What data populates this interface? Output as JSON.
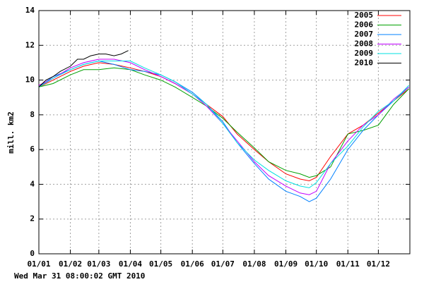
{
  "chart_data": {
    "type": "line",
    "y_label": "mill. km2",
    "footnote": "Wed Mar 31 08:00:02 GMT 2010",
    "xlim": [
      1,
      366
    ],
    "xticks": [
      {
        "value": 1,
        "label": "01/01"
      },
      {
        "value": 32,
        "label": "01/02"
      },
      {
        "value": 60,
        "label": "01/03"
      },
      {
        "value": 91,
        "label": "01/04"
      },
      {
        "value": 121,
        "label": "01/05"
      },
      {
        "value": 152,
        "label": "01/06"
      },
      {
        "value": 182,
        "label": "01/07"
      },
      {
        "value": 213,
        "label": "01/08"
      },
      {
        "value": 244,
        "label": "01/09"
      },
      {
        "value": 274,
        "label": "01/10"
      },
      {
        "value": 305,
        "label": "01/11"
      },
      {
        "value": 335,
        "label": "01/12"
      }
    ],
    "ylim": [
      0,
      14
    ],
    "yticks": [
      0,
      2,
      4,
      6,
      8,
      10,
      12,
      14
    ],
    "grid": true,
    "legend": "top-right",
    "series": [
      {
        "name": "2005",
        "color": "#ff0000",
        "x": [
          1,
          15,
          32,
          45,
          60,
          75,
          91,
          105,
          121,
          135,
          152,
          166,
          182,
          196,
          213,
          227,
          244,
          258,
          267,
          274,
          288,
          305,
          320,
          335,
          350,
          365
        ],
        "values": [
          9.6,
          10.0,
          10.5,
          10.8,
          11.0,
          10.9,
          10.7,
          10.5,
          10.2,
          9.8,
          9.2,
          8.6,
          7.9,
          6.9,
          6.0,
          5.3,
          4.6,
          4.3,
          4.2,
          4.4,
          5.6,
          6.9,
          7.4,
          8.1,
          8.8,
          9.5
        ]
      },
      {
        "name": "2006",
        "color": "#00a000",
        "x": [
          1,
          15,
          32,
          45,
          60,
          75,
          91,
          105,
          121,
          135,
          152,
          166,
          182,
          196,
          213,
          227,
          244,
          258,
          267,
          274,
          288,
          305,
          320,
          335,
          350,
          365
        ],
        "values": [
          9.6,
          9.8,
          10.3,
          10.6,
          10.6,
          10.7,
          10.6,
          10.3,
          10.0,
          9.6,
          9.0,
          8.5,
          7.8,
          7.0,
          6.1,
          5.3,
          4.8,
          4.6,
          4.4,
          4.5,
          5.0,
          6.9,
          7.1,
          7.4,
          8.6,
          9.5
        ]
      },
      {
        "name": "2007",
        "color": "#0080ff",
        "x": [
          1,
          15,
          32,
          45,
          60,
          75,
          91,
          105,
          121,
          135,
          152,
          166,
          182,
          196,
          213,
          227,
          244,
          258,
          267,
          274,
          288,
          305,
          320,
          335,
          350,
          365
        ],
        "values": [
          9.6,
          10.2,
          10.6,
          10.9,
          11.1,
          10.9,
          10.6,
          10.5,
          10.3,
          9.9,
          9.3,
          8.6,
          7.6,
          6.4,
          5.2,
          4.3,
          3.6,
          3.3,
          3.0,
          3.2,
          4.3,
          6.0,
          7.1,
          8.0,
          8.8,
          9.6
        ]
      },
      {
        "name": "2008",
        "color": "#c000ff",
        "x": [
          1,
          15,
          32,
          45,
          60,
          75,
          91,
          105,
          121,
          135,
          152,
          166,
          182,
          196,
          213,
          227,
          244,
          258,
          267,
          274,
          288,
          305,
          320,
          335,
          350,
          365
        ],
        "values": [
          9.7,
          10.1,
          10.7,
          11.0,
          11.2,
          11.2,
          11.0,
          10.6,
          10.2,
          9.8,
          9.2,
          8.5,
          7.5,
          6.5,
          5.3,
          4.5,
          3.9,
          3.5,
          3.4,
          3.6,
          5.2,
          6.5,
          7.4,
          8.0,
          8.9,
          9.6
        ]
      },
      {
        "name": "2009",
        "color": "#00e0e0",
        "x": [
          1,
          15,
          32,
          45,
          60,
          75,
          91,
          105,
          121,
          135,
          152,
          166,
          182,
          196,
          213,
          227,
          244,
          258,
          267,
          274,
          288,
          305,
          320,
          335,
          350,
          365
        ],
        "values": [
          9.6,
          10.1,
          10.6,
          10.9,
          11.1,
          11.1,
          11.1,
          10.7,
          10.3,
          9.9,
          9.2,
          8.6,
          7.5,
          6.4,
          5.4,
          4.8,
          4.2,
          3.9,
          3.8,
          4.1,
          5.2,
          6.2,
          7.3,
          8.2,
          8.8,
          9.7
        ]
      },
      {
        "name": "2010",
        "color": "#000000",
        "x": [
          1,
          8,
          15,
          22,
          32,
          39,
          45,
          52,
          60,
          67,
          75,
          82,
          89
        ],
        "values": [
          9.6,
          10.0,
          10.2,
          10.5,
          10.8,
          11.2,
          11.2,
          11.4,
          11.5,
          11.5,
          11.4,
          11.5,
          11.7
        ]
      }
    ]
  }
}
